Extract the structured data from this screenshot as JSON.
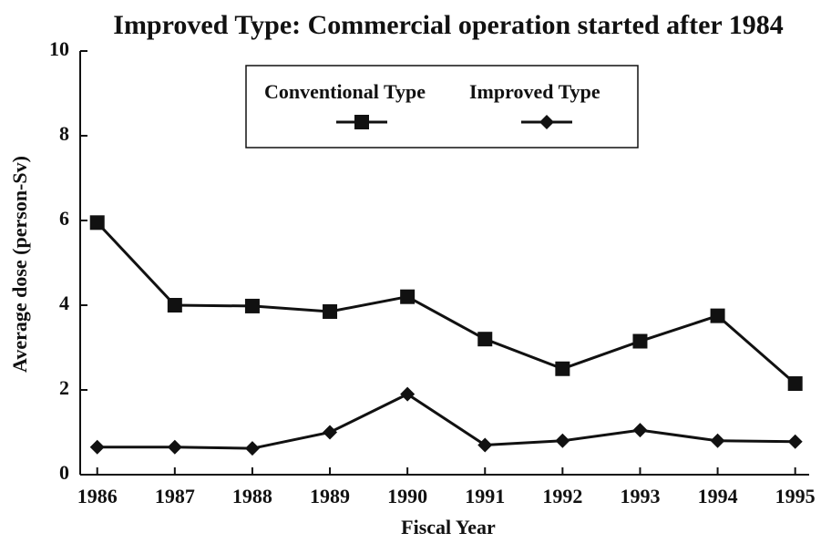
{
  "chart_data": {
    "type": "line",
    "title": "Improved Type: Commercial operation started after 1984",
    "x_label": "Fiscal Year",
    "y_label": "Average dose  (person-Sv)",
    "x": [
      1986,
      1987,
      1988,
      1989,
      1990,
      1991,
      1992,
      1993,
      1994,
      1995
    ],
    "series": [
      {
        "name": "Conventional Type",
        "color": "#111111",
        "marker": "square",
        "values": [
          5.95,
          4.0,
          3.98,
          3.85,
          4.2,
          3.2,
          2.5,
          3.15,
          3.75,
          2.15
        ]
      },
      {
        "name": "Improved Type",
        "color": "#111111",
        "marker": "diamond",
        "values": [
          0.65,
          0.65,
          0.62,
          1.0,
          1.9,
          0.7,
          0.8,
          1.05,
          0.8,
          0.78
        ]
      }
    ],
    "xlim": [
      1985.78,
      1995.18
    ],
    "xticks": [
      1986,
      1987,
      1988,
      1989,
      1990,
      1991,
      1992,
      1993,
      1994,
      1995
    ],
    "ylim": [
      0,
      10
    ],
    "yticks": [
      0,
      2,
      4,
      6,
      8,
      10
    ],
    "grid": false,
    "legend": "upper center"
  }
}
